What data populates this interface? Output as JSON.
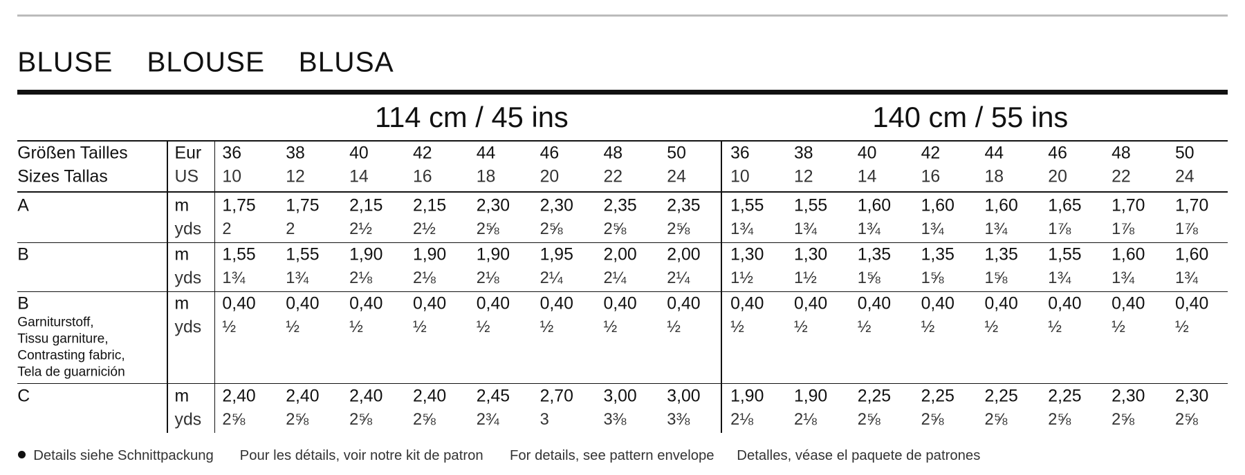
{
  "title": [
    "BLUSE",
    "BLOUSE",
    "BLUSA"
  ],
  "widths": [
    "114 cm / 45 ins",
    "140 cm / 55 ins"
  ],
  "size_header": {
    "labels": [
      "Größen Tailles",
      "Sizes Tallas"
    ],
    "units": [
      "Eur",
      "US"
    ],
    "eur": [
      36,
      38,
      40,
      42,
      44,
      46,
      48,
      50,
      36,
      38,
      40,
      42,
      44,
      46,
      48,
      50
    ],
    "us": [
      10,
      12,
      14,
      16,
      18,
      20,
      22,
      24,
      10,
      12,
      14,
      16,
      18,
      20,
      22,
      24
    ]
  },
  "rows": [
    {
      "label": "A",
      "units": [
        "m",
        "yds"
      ],
      "metric": [
        "1,75",
        "1,75",
        "2,15",
        "2,15",
        "2,30",
        "2,30",
        "2,35",
        "2,35",
        "1,55",
        "1,55",
        "1,60",
        "1,60",
        "1,60",
        "1,65",
        "1,70",
        "1,70"
      ],
      "imperial": [
        "2",
        "2",
        "2½",
        "2½",
        "2⅝",
        "2⅝",
        "2⅝",
        "2⅝",
        "1¾",
        "1¾",
        "1¾",
        "1¾",
        "1¾",
        "1⅞",
        "1⅞",
        "1⅞"
      ]
    },
    {
      "label": "B",
      "units": [
        "m",
        "yds"
      ],
      "metric": [
        "1,55",
        "1,55",
        "1,90",
        "1,90",
        "1,90",
        "1,95",
        "2,00",
        "2,00",
        "1,30",
        "1,30",
        "1,35",
        "1,35",
        "1,35",
        "1,55",
        "1,60",
        "1,60"
      ],
      "imperial": [
        "1¾",
        "1¾",
        "2⅛",
        "2⅛",
        "2⅛",
        "2¼",
        "2¼",
        "2¼",
        "1½",
        "1½",
        "1⅝",
        "1⅝",
        "1⅝",
        "1¾",
        "1¾",
        "1¾"
      ]
    },
    {
      "label": "B",
      "notes": [
        "Garniturstoff,",
        "Tissu garniture,",
        "Contrasting fabric,",
        "Tela de guarnición"
      ],
      "units": [
        "m",
        "yds"
      ],
      "metric": [
        "0,40",
        "0,40",
        "0,40",
        "0,40",
        "0,40",
        "0,40",
        "0,40",
        "0,40",
        "0,40",
        "0,40",
        "0,40",
        "0,40",
        "0,40",
        "0,40",
        "0,40",
        "0,40"
      ],
      "imperial": [
        "½",
        "½",
        "½",
        "½",
        "½",
        "½",
        "½",
        "½",
        "½",
        "½",
        "½",
        "½",
        "½",
        "½",
        "½",
        "½"
      ]
    },
    {
      "label": "C",
      "units": [
        "m",
        "yds"
      ],
      "metric": [
        "2,40",
        "2,40",
        "2,40",
        "2,40",
        "2,45",
        "2,70",
        "3,00",
        "3,00",
        "1,90",
        "1,90",
        "2,25",
        "2,25",
        "2,25",
        "2,25",
        "2,30",
        "2,30"
      ],
      "imperial": [
        "2⅝",
        "2⅝",
        "2⅝",
        "2⅝",
        "2¾",
        "3",
        "3⅜",
        "3⅜",
        "2⅛",
        "2⅛",
        "2⅝",
        "2⅝",
        "2⅝",
        "2⅝",
        "2⅝",
        "2⅝"
      ]
    }
  ],
  "footer": [
    "Details siehe Schnittpackung",
    "Pour les détails, voir notre kit de patron",
    "For details, see pattern envelope",
    "Detalles, véase el paquete de patrones"
  ]
}
